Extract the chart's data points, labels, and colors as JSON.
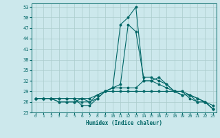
{
  "xlabel": "Humidex (Indice chaleur)",
  "bg_color": "#cce8ec",
  "grid_color": "#aacccc",
  "line_color": "#006666",
  "ylim": [
    23,
    54
  ],
  "xlim": [
    0,
    23
  ],
  "yticks": [
    23,
    26,
    29,
    32,
    35,
    38,
    41,
    44,
    47,
    50,
    53
  ],
  "xticks": [
    0,
    1,
    2,
    3,
    4,
    5,
    6,
    7,
    8,
    9,
    10,
    11,
    12,
    13,
    14,
    15,
    16,
    17,
    18,
    19,
    20,
    21,
    22,
    23
  ],
  "curves": [
    [
      27,
      27,
      27,
      27,
      27,
      27,
      25,
      25,
      27,
      29,
      30,
      48,
      50,
      53,
      32,
      32,
      33,
      31,
      29,
      29,
      28,
      26,
      26,
      24
    ],
    [
      27,
      27,
      27,
      26,
      26,
      26,
      26,
      26,
      28,
      29,
      30,
      31,
      48,
      46,
      33,
      33,
      32,
      31,
      29,
      28,
      28,
      27,
      26,
      24
    ],
    [
      27,
      27,
      27,
      26,
      26,
      26,
      27,
      26,
      27,
      29,
      30,
      30,
      30,
      30,
      32,
      32,
      31,
      30,
      29,
      28,
      28,
      27,
      26,
      24
    ],
    [
      27,
      27,
      27,
      27,
      27,
      27,
      27,
      27,
      28,
      29,
      29,
      29,
      29,
      29,
      29,
      29,
      29,
      29,
      29,
      29,
      27,
      26,
      26,
      25
    ]
  ]
}
